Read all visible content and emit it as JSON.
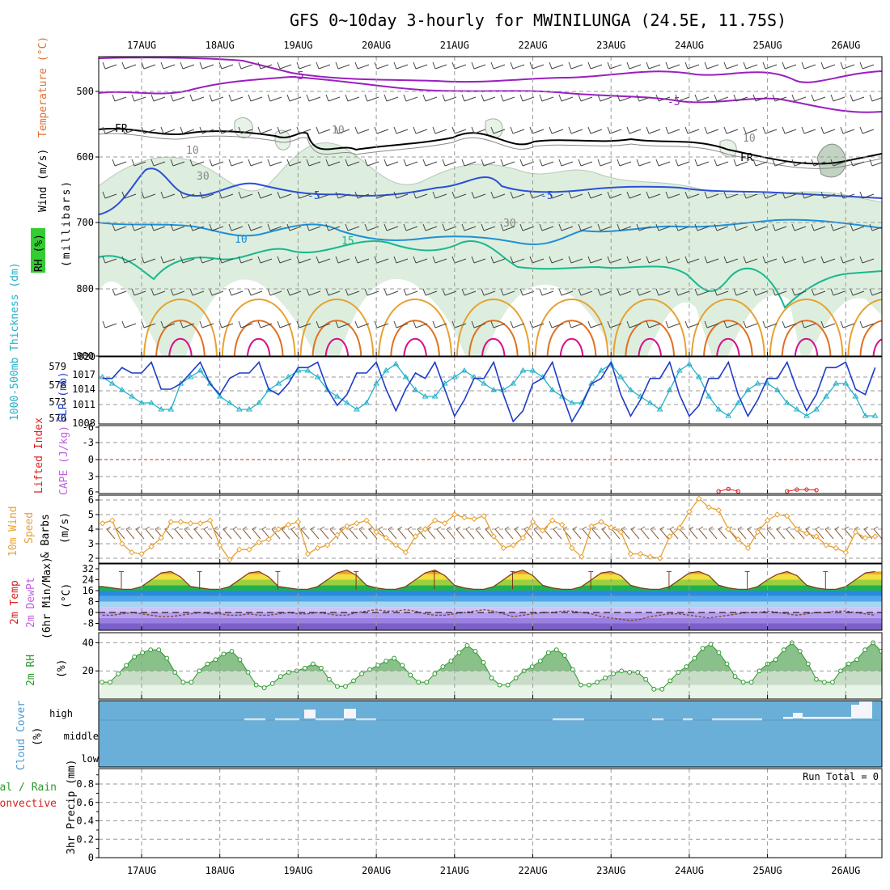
{
  "title": "GFS 0~10day 3-hourly for MWINILUNGA (24.5E, 11.75S)",
  "dates": [
    "17AUG",
    "18AUG",
    "19AUG",
    "20AUG",
    "21AUG",
    "22AUG",
    "23AUG",
    "24AUG",
    "25AUG",
    "26AUG"
  ],
  "colors": {
    "temp_purple": "#9a1fbf",
    "temp_blue": "#2a50d8",
    "temp_lightblue": "#1e90d8",
    "temp_teal": "#18b890",
    "temp_orange": "#e8a030",
    "temp_darkorange": "#e07020",
    "temp_magenta": "#d8108a",
    "rh_fill": "#cfe8d0",
    "slp": "#1e3cc8",
    "thick": "#20b0c8",
    "wind": "#e8a030",
    "cloud": "#6aafd8",
    "rh2m": "#2a9a2a"
  },
  "panels": {
    "upper": {
      "ylabel_wind": "Wind (m/s)",
      "ylabel_temp": "Temperature (°C)",
      "ylabel_rh": "RH (%)",
      "ylabel_p": "(millibars)",
      "yticks": [
        "500",
        "600",
        "700",
        "800",
        "900"
      ],
      "contour_labels": [
        "-5",
        "-5",
        "FR",
        "FR",
        "-5",
        "-5",
        "10",
        "15",
        "10",
        "10",
        "30",
        "30",
        "10"
      ]
    },
    "slp": {
      "ylabel_thick": "1000-500mb Thickness (dm)",
      "ylabel_slp": "SLP (mb)",
      "thick_ticks": [
        "579",
        "576",
        "573",
        "570"
      ],
      "slp_ticks": [
        "1020",
        "1017",
        "1014",
        "1011",
        "1008"
      ]
    },
    "cape": {
      "ylabel_li": "Lifted Index",
      "ylabel_cape": "CAPE (J/kg)",
      "yticks": [
        "-6",
        "-3",
        "0",
        "3",
        "6"
      ]
    },
    "wind10": {
      "ylabel": "10m Wind Speed & Barbs (m/s)",
      "ylabel_a": "10m Wind",
      "ylabel_b": "Speed",
      "ylabel_c": "& Barbs",
      "ylabel_unit": "(m/s)",
      "yticks": [
        "2",
        "3",
        "4",
        "5",
        "6"
      ]
    },
    "temp2m": {
      "ylabel_a": "2m Temp",
      "ylabel_b": "2m DewPt",
      "ylabel_c": "(6hr Min/Max)",
      "ylabel_unit": "(°C)",
      "yticks": [
        "32",
        "24",
        "16",
        "8",
        "0",
        "-8"
      ]
    },
    "rh2m": {
      "ylabel": "2m RH",
      "ylabel_unit": "(%)",
      "yticks": [
        "40",
        "20"
      ]
    },
    "cloud": {
      "ylabel": "Cloud Cover",
      "ylabel_unit": "(%)",
      "levels": [
        "high",
        "middle",
        "low"
      ]
    },
    "precip": {
      "ylabel_a": "Total / Rain",
      "ylabel_b": "Convective",
      "ylabel_c": "3hr Precip (mm)",
      "yticks": [
        "0.8",
        "0.6",
        "0.4",
        "0.2",
        "0"
      ],
      "run_total": "Run Total = 0"
    }
  },
  "chart_data": [
    {
      "type": "line",
      "title": "1000-500mb Thickness (dm) / SLP (mb)",
      "x_start": "16AUG 12Z",
      "x_step_hours": 3,
      "series": [
        {
          "name": "SLP (mb)",
          "values": [
            1016,
            1016,
            1018,
            1017,
            1017,
            1019,
            1014,
            1014,
            1015,
            1017,
            1019,
            1015,
            1013,
            1016,
            1017,
            1017,
            1019,
            1014,
            1013,
            1015,
            1018,
            1018,
            1019,
            1014,
            1011,
            1013,
            1017,
            1017,
            1019,
            1014,
            1010,
            1014,
            1017,
            1016,
            1019,
            1014,
            1009,
            1012,
            1016,
            1016,
            1019,
            1013,
            1008,
            1010,
            1015,
            1016,
            1019,
            1013,
            1008,
            1011,
            1015,
            1016,
            1019,
            1013,
            1009,
            1012,
            1016,
            1016,
            1019,
            1013,
            1009,
            1011,
            1016,
            1016,
            1019,
            1013,
            1009,
            1012,
            1016,
            1016,
            1019,
            1014,
            1010,
            1013,
            1018,
            1018,
            1019,
            1014,
            1013,
            1018
          ]
        },
        {
          "name": "1000-500mb Thickness (dm)",
          "values": [
            577,
            576,
            575,
            574,
            573,
            573,
            572,
            572,
            576,
            577,
            578,
            576,
            574,
            573,
            572,
            572,
            573,
            575,
            576,
            577,
            578,
            578,
            577,
            575,
            574,
            573,
            572,
            573,
            576,
            578,
            579,
            577,
            575,
            574,
            574,
            576,
            577,
            578,
            577,
            576,
            575,
            575,
            576,
            578,
            578,
            577,
            575,
            574,
            573,
            573,
            576,
            578,
            579,
            577,
            575,
            574,
            573,
            572,
            575,
            578,
            579,
            577,
            574,
            572,
            571,
            573,
            575,
            576,
            576,
            575,
            573,
            572,
            571,
            572,
            574,
            576,
            576,
            574,
            571,
            571
          ]
        }
      ],
      "ylim_slp": [
        1008,
        1020
      ],
      "ylim_thick": [
        570,
        580
      ]
    },
    {
      "type": "line",
      "title": "Lifted Index / CAPE",
      "series": [
        {
          "name": "Lifted Index",
          "values_note": "only segments visible near 24.6AUG and 25.5AUG",
          "points": [
            [
              63,
              5.6
            ],
            [
              64,
              5.2
            ],
            [
              65,
              5.6
            ],
            [
              70,
              5.6
            ],
            [
              71,
              5.3
            ],
            [
              72,
              5.3
            ],
            [
              73,
              5.4
            ]
          ]
        }
      ],
      "ylim": [
        6,
        -6
      ]
    },
    {
      "type": "line",
      "title": "10m Wind Speed & Barbs (m/s)",
      "series": [
        {
          "name": "10m Wind Speed",
          "values": [
            4.4,
            4.6,
            3.0,
            2.4,
            2.3,
            2.8,
            3.4,
            4.5,
            4.5,
            4.4,
            4.4,
            4.6,
            2.9,
            1.9,
            2.6,
            2.6,
            3.1,
            3.3,
            4.0,
            4.3,
            4.5,
            2.3,
            2.7,
            2.9,
            3.6,
            4.2,
            4.4,
            4.6,
            3.8,
            3.4,
            2.9,
            2.4,
            3.5,
            4.0,
            4.6,
            4.4,
            5.0,
            4.8,
            4.7,
            4.9,
            3.5,
            2.7,
            2.9,
            3.4,
            4.5,
            3.9,
            4.6,
            4.3,
            2.7,
            2.1,
            4.2,
            4.5,
            4.1,
            3.8,
            2.3,
            2.3,
            2.1,
            2.0,
            3.5,
            4.1,
            5.2,
            6.1,
            5.5,
            5.3,
            4.0,
            3.3,
            2.7,
            3.8,
            4.6,
            5.0,
            4.9,
            4.0,
            3.7,
            3.5,
            2.9,
            2.7,
            2.4,
            3.8,
            3.4,
            3.5
          ]
        }
      ],
      "ylim": [
        1.8,
        6.6
      ]
    },
    {
      "type": "line",
      "title": "2m Temp / 2m DewPt (°C)",
      "series": [
        {
          "name": "2m Temp",
          "values": [
            19,
            18,
            17,
            17,
            19,
            24,
            29,
            30,
            26,
            19,
            18,
            17,
            17,
            19,
            24,
            29,
            30,
            26,
            19,
            18,
            17,
            17,
            19,
            24,
            29,
            31,
            27,
            20,
            18,
            17,
            17,
            19,
            24,
            29,
            31,
            27,
            20,
            18,
            17,
            17,
            19,
            24,
            29,
            31,
            27,
            20,
            18,
            17,
            17,
            19,
            24,
            29,
            30,
            27,
            20,
            18,
            17,
            17,
            19,
            24,
            29,
            30,
            27,
            20,
            18,
            17,
            17,
            19,
            24,
            28,
            30,
            27,
            20,
            18,
            17,
            17,
            19,
            24,
            29,
            30
          ]
        },
        {
          "name": "2m DewPt",
          "values": [
            -2,
            -2,
            -1,
            0,
            -1,
            -2,
            -3,
            -3,
            -2,
            -1,
            0,
            -1,
            -1,
            -2,
            -2,
            -1,
            -2,
            -2,
            -1,
            0,
            -1,
            -1,
            0,
            -1,
            -2,
            -2,
            0,
            1,
            2,
            1,
            1,
            2,
            1,
            -1,
            -2,
            -2,
            -1,
            0,
            1,
            2,
            1,
            -1,
            -3,
            -2,
            -1,
            0,
            0,
            1,
            1,
            0,
            -1,
            -3,
            -4,
            -5,
            -6,
            -5,
            -3,
            -2,
            -1,
            -1,
            -2,
            -3,
            -4,
            -3,
            -2,
            -1,
            0,
            0,
            1,
            0,
            -1,
            -2,
            -1,
            0,
            0,
            1,
            1,
            0,
            -1,
            -2
          ]
        }
      ],
      "ylim": [
        -14,
        34
      ]
    },
    {
      "type": "area",
      "title": "2m RH (%)",
      "series": [
        {
          "name": "2m RH",
          "values": [
            12,
            12,
            18,
            24,
            30,
            33,
            35,
            35,
            29,
            19,
            12,
            12,
            20,
            25,
            28,
            32,
            34,
            28,
            19,
            10,
            8,
            11,
            16,
            19,
            20,
            22,
            25,
            22,
            14,
            9,
            9,
            13,
            18,
            21,
            24,
            27,
            29,
            24,
            17,
            12,
            12,
            18,
            23,
            27,
            33,
            38,
            34,
            26,
            15,
            10,
            10,
            15,
            20,
            23,
            27,
            33,
            35,
            31,
            21,
            10,
            10,
            12,
            15,
            18,
            20,
            19,
            19,
            14,
            7,
            7,
            13,
            19,
            23,
            29,
            36,
            39,
            33,
            25,
            16,
            12,
            12,
            20,
            25,
            28,
            35,
            40,
            34,
            25,
            14,
            12,
            12,
            20,
            25,
            28,
            35,
            40,
            34
          ]
        }
      ],
      "ylim": [
        0,
        46
      ]
    },
    {
      "type": "bar",
      "title": "Cloud Cover (%)",
      "series": [
        {
          "name": "high cloud",
          "values_note": "thin high-cloud fragments mainly 18.3-19.8AUG and after 22.2AUG; peaks near 19.1, 19.6, 25.2 and 26.1AUG"
        }
      ]
    },
    {
      "type": "bar",
      "title": "3hr Precip (mm)",
      "series": [
        {
          "name": "Total / Rain",
          "values": [
            0,
            0,
            0,
            0,
            0,
            0,
            0,
            0,
            0,
            0
          ]
        },
        {
          "name": "Convective",
          "values": [
            0,
            0,
            0,
            0,
            0,
            0,
            0,
            0,
            0,
            0
          ]
        }
      ],
      "ylim": [
        0,
        0.95
      ]
    }
  ]
}
